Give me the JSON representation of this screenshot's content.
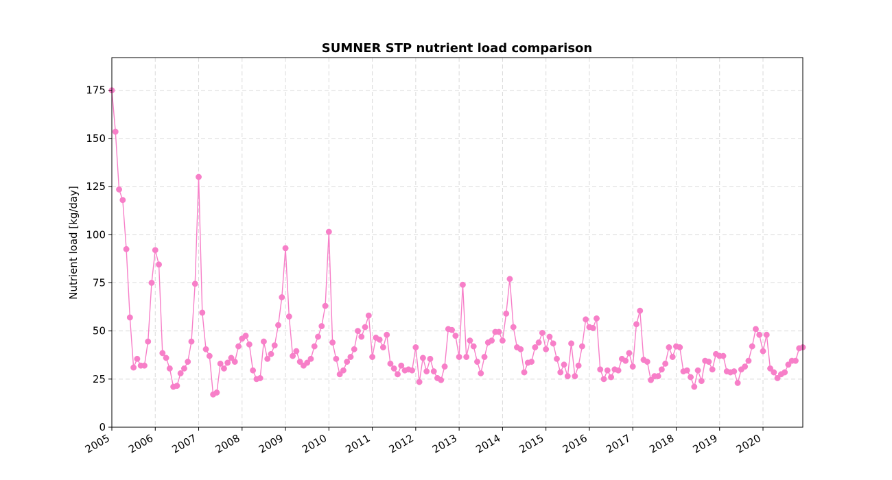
{
  "chart_data": {
    "type": "line",
    "title": "SUMNER STP nutrient load comparison",
    "xlabel": "",
    "ylabel": "Nutrient load [kg/day]",
    "x_start": "2005-01",
    "x_frequency": "monthly",
    "xlim": [
      "2005-01",
      "2020-12"
    ],
    "ylim": [
      0,
      192
    ],
    "x_tick_labels": [
      "2005",
      "2006",
      "2007",
      "2008",
      "2009",
      "2010",
      "2011",
      "2012",
      "2013",
      "2014",
      "2015",
      "2016",
      "2017",
      "2018",
      "2019",
      "2020"
    ],
    "y_ticks": [
      0,
      25,
      50,
      75,
      100,
      125,
      150,
      175
    ],
    "grid": true,
    "grid_style": "dashed",
    "line_color": "#f77fc8",
    "marker": "circle",
    "series": [
      {
        "values": [
          175,
          153.5,
          123.5,
          118,
          92.5,
          57,
          31,
          35.5,
          32,
          32,
          44.5,
          75,
          92,
          84.5,
          38.5,
          36,
          30.5,
          21,
          21.5,
          28,
          30.5,
          34,
          44.5,
          74.5,
          130,
          59.5,
          40.5,
          37,
          17,
          18,
          33,
          30.5,
          33.5,
          36,
          34,
          42,
          46,
          47.5,
          43,
          29.5,
          25,
          25.5,
          44.5,
          35.5,
          38,
          42.5,
          53,
          67.5,
          93,
          57.5,
          37,
          39.5,
          34,
          32,
          33.5,
          35.5,
          42,
          47,
          52.5,
          63,
          101.5,
          44,
          35.5,
          27.5,
          29.5,
          34,
          36.5,
          40.5,
          50,
          47,
          52,
          58,
          36.5,
          46.5,
          45.5,
          41.5,
          48,
          33,
          30.5,
          27.5,
          32,
          29.5,
          30,
          29.5,
          41.5,
          23.5,
          36,
          29,
          35.5,
          29,
          25.5,
          24.5,
          31.5,
          51,
          50.5,
          47.5,
          36.5,
          74,
          36.5,
          45,
          42,
          34,
          28,
          36.5,
          44,
          45,
          49.5,
          49.5,
          45,
          59,
          77,
          52,
          41.5,
          40.5,
          28.5,
          33.5,
          34,
          41.5,
          44,
          49,
          40.5,
          47,
          43.5,
          35.5,
          28.5,
          32.5,
          26.5,
          43.5,
          26.5,
          32,
          42,
          56,
          52,
          51.5,
          56.5,
          30,
          25,
          29.5,
          26,
          30,
          29.5,
          35.5,
          34.5,
          38.5,
          31.5,
          53.5,
          60.5,
          35,
          34,
          24.5,
          26.5,
          26.5,
          30,
          33,
          41.5,
          36.5,
          42,
          41.5,
          29,
          29.5,
          26,
          21,
          29.5,
          24,
          34.5,
          34,
          30,
          38,
          37,
          37,
          29,
          28.5,
          29,
          23,
          30,
          31.5,
          34.5,
          42,
          51,
          48,
          39.5,
          48,
          30.5,
          28.5,
          25.5,
          27.5,
          28.5,
          32.5,
          34.5,
          34.5,
          41,
          41.5
        ]
      }
    ]
  }
}
